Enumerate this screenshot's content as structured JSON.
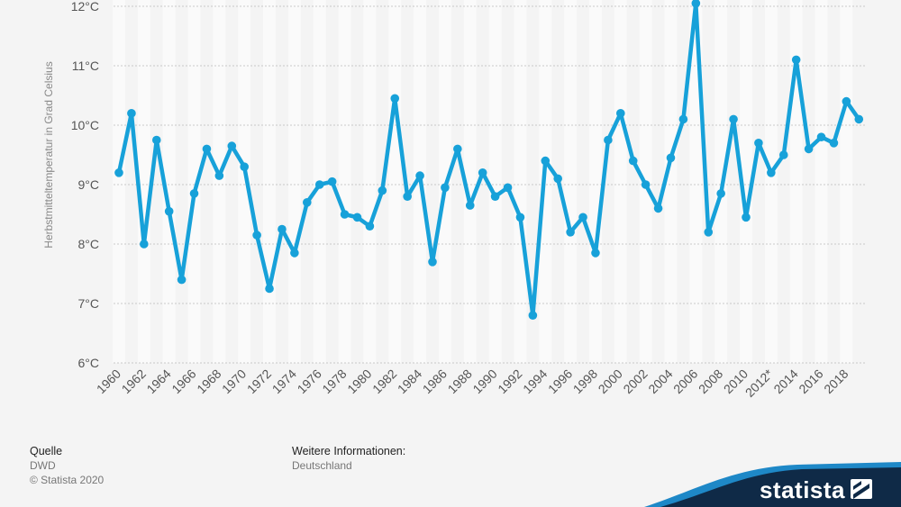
{
  "chart_data": {
    "type": "line",
    "ylabel": "Herbstmitteltemperatur in Grad Celsius",
    "ylim": [
      6,
      12
    ],
    "yticks": [
      "6°C",
      "7°C",
      "8°C",
      "9°C",
      "10°C",
      "11°C",
      "12°C"
    ],
    "xtick_labels": [
      "1960",
      "1962",
      "1964",
      "1966",
      "1968",
      "1970",
      "1972",
      "1974",
      "1976",
      "1978",
      "1980",
      "1982",
      "1984",
      "1986",
      "1988",
      "1990",
      "1992",
      "1994",
      "1996",
      "1998",
      "2000",
      "2002",
      "2004",
      "2006",
      "2008",
      "2010",
      "2012*",
      "2014",
      "2016",
      "2018"
    ],
    "categories": [
      "1960",
      "1961",
      "1962",
      "1963",
      "1964",
      "1965",
      "1966",
      "1967",
      "1968",
      "1969",
      "1970",
      "1971",
      "1972",
      "1973",
      "1974",
      "1975",
      "1976",
      "1977",
      "1978",
      "1979",
      "1980",
      "1981",
      "1982",
      "1983",
      "1984",
      "1985",
      "1986",
      "1987",
      "1988",
      "1989",
      "1990",
      "1991",
      "1992",
      "1993",
      "1994",
      "1995",
      "1996",
      "1997",
      "1998",
      "1999",
      "2000",
      "2001",
      "2002",
      "2003",
      "2004",
      "2005",
      "2006",
      "2007",
      "2008",
      "2009",
      "2010",
      "2011",
      "2012*",
      "2013",
      "2014",
      "2015",
      "2016",
      "2017",
      "2018",
      "2019"
    ],
    "series": [
      {
        "color": "#17a1d9",
        "values": [
          9.2,
          10.2,
          8.0,
          9.75,
          8.55,
          7.4,
          8.85,
          9.6,
          9.15,
          9.65,
          9.3,
          8.15,
          7.25,
          8.25,
          7.85,
          8.7,
          9.0,
          9.05,
          8.5,
          8.45,
          8.3,
          8.9,
          10.45,
          8.8,
          9.15,
          7.7,
          8.95,
          9.6,
          8.65,
          9.2,
          8.8,
          8.95,
          8.45,
          6.8,
          9.4,
          9.1,
          8.2,
          8.45,
          7.85,
          9.75,
          10.2,
          9.4,
          9.0,
          8.6,
          9.45,
          10.1,
          12.05,
          8.2,
          8.85,
          10.1,
          8.45,
          9.7,
          9.2,
          9.5,
          11.1,
          9.6,
          9.8,
          9.7,
          10.4,
          10.1
        ]
      }
    ],
    "grid": true
  },
  "footer": {
    "source_title": "Quelle",
    "source": "DWD",
    "copyright": "© Statista 2020",
    "info_title": "Weitere Informationen:",
    "info": "Deutschland"
  },
  "brand": {
    "name": "statista",
    "color": "#0f2a47",
    "accent": "#1e88c7"
  }
}
